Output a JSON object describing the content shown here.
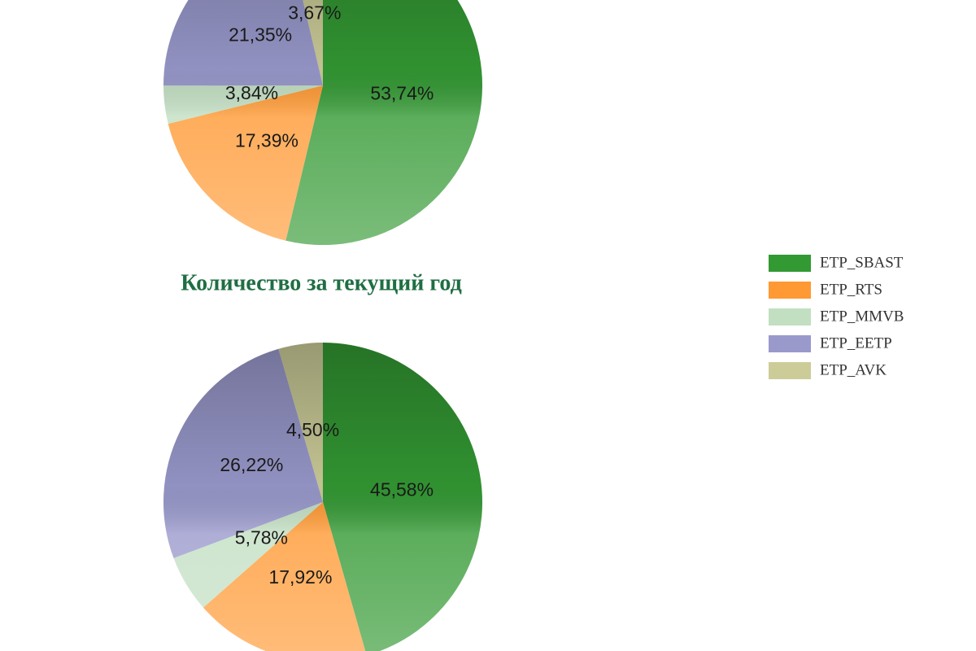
{
  "chart_data": [
    {
      "type": "pie",
      "categories": [
        "ETP_SBAST",
        "ETP_RTS",
        "ETP_MMVB",
        "ETP_EETP",
        "ETP_AVK"
      ],
      "colors": [
        "#339933",
        "#ff9933",
        "#c2dfc2",
        "#9999cc",
        "#cccc99"
      ],
      "values": [
        53.74,
        17.39,
        3.84,
        21.35,
        3.67
      ],
      "value_labels": [
        "53,74%",
        "17,39%",
        "3,84%",
        "21,35%",
        "3,67%"
      ]
    },
    {
      "type": "pie",
      "title": "Количество за текущий год",
      "values": [
        45.58,
        17.92,
        5.78,
        26.22,
        4.5
      ],
      "value_labels": [
        "45,58%",
        "17,92%",
        "5,78%",
        "26,22%",
        "4,50%"
      ]
    }
  ]
}
